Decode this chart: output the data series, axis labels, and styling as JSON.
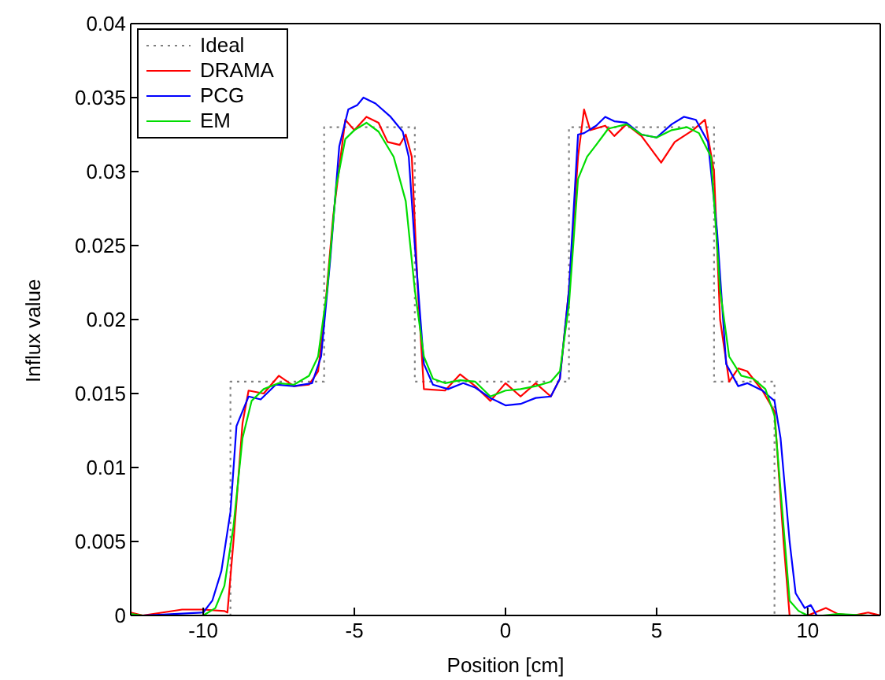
{
  "chart_data": {
    "type": "line",
    "xlabel": "Position [cm]",
    "ylabel": "Influx value",
    "xlim": [
      -12.4,
      12.4
    ],
    "xticks": [
      -10,
      -5,
      0,
      5,
      10
    ],
    "ylim": [
      0,
      0.04
    ],
    "yticks": [
      0,
      0.005,
      0.01,
      0.015,
      0.02,
      0.025,
      0.03,
      0.035,
      0.04
    ],
    "grid": false,
    "legend": "top left",
    "marker": "none",
    "series": [
      {
        "name": "Ideal",
        "type": "step",
        "line_style": "dotted",
        "color": "#808080",
        "x": [
          -12.4,
          -9.1,
          -6.0,
          -3.0,
          2.1,
          6.9,
          8.9,
          12.4
        ],
        "values": [
          0,
          0.0158,
          0.033,
          0.0158,
          0.033,
          0.0158,
          0,
          0
        ]
      },
      {
        "name": "DRAMA",
        "color": "#ff0000",
        "x": [
          -12.4,
          -12,
          -10.7,
          -10,
          -9.3,
          -9.2,
          -9,
          -8.7,
          -8.5,
          -8,
          -7.5,
          -7,
          -6.5,
          -6.2,
          -6,
          -5.7,
          -5.3,
          -5,
          -4.6,
          -4.2,
          -3.9,
          -3.5,
          -3.3,
          -3.1,
          -2.9,
          -2.7,
          -2,
          -1.5,
          -1,
          -0.5,
          0,
          0.5,
          1,
          1.5,
          1.8,
          2.1,
          2.4,
          2.6,
          2.8,
          3.3,
          3.6,
          4,
          4.5,
          5.15,
          5.6,
          6.2,
          6.6,
          6.9,
          7.1,
          7.4,
          7.7,
          8,
          8.5,
          8.9,
          9.2,
          9.4,
          10,
          10.6,
          11,
          11.5,
          12,
          12.4
        ],
        "values": [
          0.0002,
          0,
          0.0004,
          0.0004,
          0.0003,
          0.0002,
          0.005,
          0.013,
          0.0152,
          0.015,
          0.0162,
          0.0155,
          0.0156,
          0.0165,
          0.02,
          0.027,
          0.0335,
          0.0328,
          0.0337,
          0.0333,
          0.032,
          0.0318,
          0.0325,
          0.031,
          0.022,
          0.0153,
          0.0152,
          0.0163,
          0.0155,
          0.0145,
          0.0157,
          0.0148,
          0.0157,
          0.0148,
          0.016,
          0.022,
          0.031,
          0.0342,
          0.0328,
          0.0331,
          0.0324,
          0.0332,
          0.0324,
          0.0306,
          0.032,
          0.0328,
          0.0335,
          0.03,
          0.02,
          0.0158,
          0.0167,
          0.0165,
          0.0152,
          0.0138,
          0.005,
          0,
          0,
          0.0005,
          0.0001,
          0,
          0.0002,
          0
        ]
      },
      {
        "name": "PCG",
        "color": "#0000ff",
        "x": [
          -12.4,
          -12,
          -10,
          -9.7,
          -9.4,
          -9.1,
          -8.9,
          -8.5,
          -8.1,
          -7.6,
          -7,
          -6.4,
          -6.1,
          -5.8,
          -5.5,
          -5.2,
          -4.9,
          -4.7,
          -4.3,
          -3.8,
          -3.4,
          -3.2,
          -3,
          -2.7,
          -2.4,
          -1.9,
          -1.4,
          -1,
          -0.5,
          0,
          0.5,
          1,
          1.5,
          1.8,
          2.1,
          2.4,
          2.6,
          3,
          3.3,
          3.6,
          4,
          4.5,
          5,
          5.5,
          5.9,
          6.3,
          6.7,
          7,
          7.3,
          7.7,
          8,
          8.5,
          8.9,
          9.1,
          9.4,
          9.6,
          9.9,
          10.1,
          10.3,
          12,
          12.4
        ],
        "values": [
          0,
          0,
          0.0002,
          0.001,
          0.003,
          0.007,
          0.0128,
          0.0148,
          0.0146,
          0.0156,
          0.0155,
          0.0157,
          0.0175,
          0.024,
          0.0317,
          0.0342,
          0.0345,
          0.035,
          0.0346,
          0.0337,
          0.0327,
          0.031,
          0.025,
          0.017,
          0.0156,
          0.0153,
          0.0157,
          0.0154,
          0.0147,
          0.0142,
          0.0143,
          0.0147,
          0.0148,
          0.016,
          0.022,
          0.0325,
          0.0326,
          0.0331,
          0.0337,
          0.0334,
          0.0333,
          0.0325,
          0.0323,
          0.0332,
          0.0337,
          0.0335,
          0.032,
          0.026,
          0.017,
          0.0155,
          0.0157,
          0.0152,
          0.0145,
          0.012,
          0.005,
          0.0015,
          0.0005,
          0.0007,
          0,
          0,
          0
        ]
      },
      {
        "name": "EM",
        "color": "#00dd00",
        "x": [
          -12.4,
          -12,
          -10,
          -9.6,
          -9.3,
          -9,
          -8.7,
          -8.4,
          -8,
          -7.5,
          -7,
          -6.5,
          -6.2,
          -5.9,
          -5.6,
          -5.3,
          -5,
          -4.6,
          -4.2,
          -3.7,
          -3.3,
          -3,
          -2.7,
          -2.4,
          -2,
          -1.5,
          -1,
          -0.5,
          0,
          0.5,
          1,
          1.5,
          1.8,
          2.1,
          2.4,
          2.7,
          3,
          3.4,
          4,
          4.5,
          5,
          5.5,
          6,
          6.4,
          6.8,
          7.1,
          7.4,
          7.8,
          8.2,
          8.6,
          8.9,
          9.2,
          9.4,
          9.7,
          10,
          10.5,
          11,
          12,
          12.4
        ],
        "values": [
          0.0001,
          0,
          0,
          0.0005,
          0.002,
          0.006,
          0.012,
          0.0145,
          0.0153,
          0.0157,
          0.0156,
          0.0162,
          0.0175,
          0.022,
          0.029,
          0.0322,
          0.0328,
          0.0333,
          0.0327,
          0.031,
          0.028,
          0.022,
          0.0175,
          0.016,
          0.0157,
          0.0159,
          0.0158,
          0.0148,
          0.0152,
          0.0153,
          0.0155,
          0.0158,
          0.0165,
          0.021,
          0.0295,
          0.031,
          0.0318,
          0.0329,
          0.0332,
          0.0325,
          0.0323,
          0.0328,
          0.033,
          0.0326,
          0.031,
          0.022,
          0.0175,
          0.0162,
          0.016,
          0.0153,
          0.0135,
          0.006,
          0.001,
          0.0003,
          0,
          0,
          0.0001,
          0,
          0
        ]
      }
    ]
  }
}
